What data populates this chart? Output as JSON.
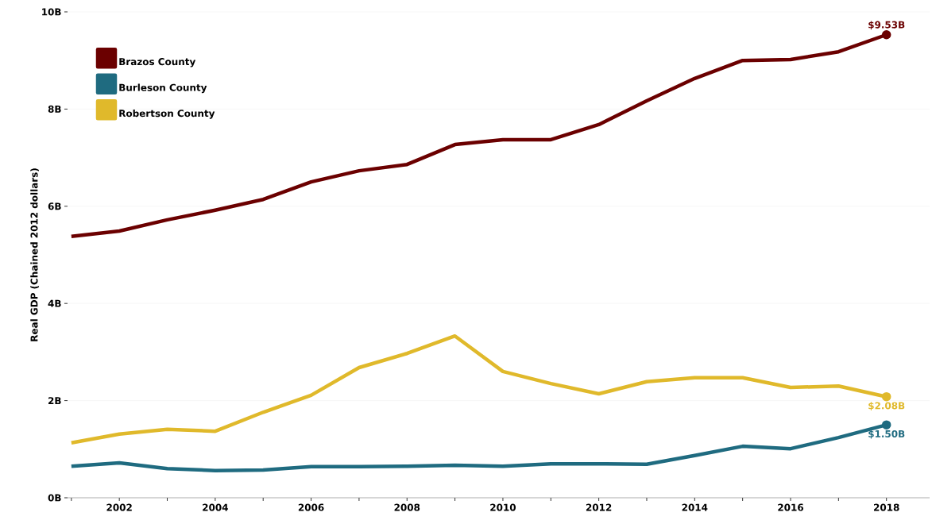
{
  "chart_data": {
    "type": "line",
    "ylabel": "Real GDP (Chained 2012 dollars)",
    "x": [
      2001,
      2002,
      2003,
      2004,
      2005,
      2006,
      2007,
      2008,
      2009,
      2010,
      2011,
      2012,
      2013,
      2014,
      2015,
      2016,
      2017,
      2018
    ],
    "series": [
      {
        "name": "Brazos County",
        "color": "#6b0000",
        "values": [
          5.38,
          5.49,
          5.72,
          5.92,
          6.14,
          6.5,
          6.73,
          6.86,
          7.27,
          7.37,
          7.37,
          7.68,
          8.17,
          8.63,
          9.0,
          9.02,
          9.18,
          9.53
        ],
        "value_labels": [
          null,
          null,
          null,
          null,
          null,
          null,
          null,
          null,
          null,
          null,
          null,
          null,
          null,
          null,
          null,
          null,
          null,
          "$9.53B"
        ]
      },
      {
        "name": "Burleson County",
        "color": "#1f6b80",
        "values": [
          0.65,
          0.72,
          0.6,
          0.56,
          0.57,
          0.64,
          0.64,
          0.65,
          0.67,
          0.65,
          0.7,
          0.7,
          0.69,
          0.87,
          1.06,
          1.01,
          1.24,
          1.5
        ],
        "value_labels": [
          null,
          null,
          null,
          null,
          null,
          null,
          null,
          null,
          null,
          null,
          null,
          null,
          null,
          null,
          null,
          null,
          null,
          "$1.50B"
        ]
      },
      {
        "name": "Robertson County",
        "color": "#e0b92b",
        "values": [
          1.13,
          1.31,
          1.41,
          1.37,
          1.76,
          2.11,
          2.68,
          2.97,
          3.33,
          2.6,
          2.35,
          2.14,
          2.39,
          2.47,
          2.47,
          2.27,
          2.3,
          2.08
        ],
        "value_labels": [
          null,
          null,
          null,
          null,
          null,
          null,
          null,
          null,
          null,
          null,
          null,
          null,
          null,
          null,
          null,
          null,
          null,
          "$2.08B"
        ]
      }
    ],
    "xlim": [
      2000.92,
      2018.9
    ],
    "xticks": [
      {
        "value": 2001,
        "label": null
      },
      2002,
      {
        "value": 2003,
        "label": null
      },
      2004,
      {
        "value": 2005,
        "label": null
      },
      2006,
      {
        "value": 2007,
        "label": null
      },
      2008,
      {
        "value": 2009,
        "label": null
      },
      2010,
      {
        "value": 2011,
        "label": null
      },
      2012,
      {
        "value": 2013,
        "label": null
      },
      2014,
      {
        "value": 2015,
        "label": null
      },
      2016,
      {
        "value": 2017,
        "label": null
      },
      2018
    ],
    "ylim": [
      0,
      10
    ],
    "yticks": [
      {
        "value": 0,
        "label": "0B"
      },
      {
        "value": 2,
        "label": "2B"
      },
      {
        "value": 4,
        "label": "4B"
      },
      {
        "value": 6,
        "label": "6B"
      },
      {
        "value": 8,
        "label": "8B"
      },
      {
        "value": 10,
        "label": "10B"
      }
    ],
    "grid": "y",
    "legend": "top left"
  }
}
